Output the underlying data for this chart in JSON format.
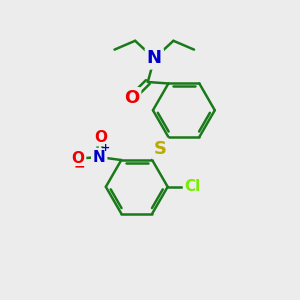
{
  "background_color": "#ececec",
  "bond_color": "#1a7a1a",
  "atom_colors": {
    "N": "#0000cc",
    "O": "#ee0000",
    "S": "#bbaa00",
    "Cl": "#77ee00",
    "C": "#1a7a1a"
  },
  "bond_width": 1.8,
  "dbo": 0.12,
  "fsz_large": 13,
  "fsz_small": 11,
  "fsz_charge": 8
}
